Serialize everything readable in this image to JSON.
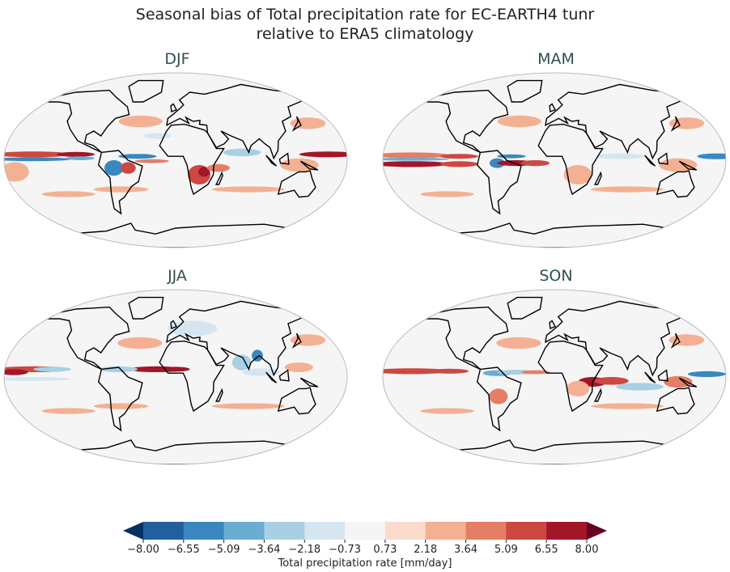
{
  "title_line1": "Seasonal bias of Total precipitation rate for EC-EARTH4 tunr",
  "title_line2": "relative to ERA5 climatology",
  "chart_data": {
    "type": "map",
    "colorbar": {
      "label": "Total precipitation rate [mm/day]",
      "ticks": [
        "−8.00",
        "−6.55",
        "−5.09",
        "−3.64",
        "−2.18",
        "−0.73",
        "0.73",
        "2.18",
        "3.64",
        "5.09",
        "6.55",
        "8.00"
      ],
      "range": [
        -8,
        8
      ],
      "colors": [
        "#215f9e",
        "#3a87bf",
        "#6aadd3",
        "#a8d0e4",
        "#d6e6f0",
        "#f5f5f5",
        "#fbdccc",
        "#f4b092",
        "#e47e65",
        "#cc4840",
        "#a31628"
      ],
      "under_color": "#053061",
      "over_color": "#67001f"
    },
    "panels": [
      {
        "season": "DJF",
        "anomalies": [
          [
            -150,
            6,
            40,
            3,
            9
          ],
          [
            -105,
            6,
            20,
            2.5,
            10
          ],
          [
            160,
            6,
            30,
            3,
            10
          ],
          [
            -150,
            1,
            40,
            2,
            1
          ],
          [
            -100,
            2,
            15,
            2,
            2
          ],
          [
            -65,
            -8,
            10,
            8,
            1
          ],
          [
            -50,
            -8,
            8,
            6,
            9
          ],
          [
            -40,
            4,
            20,
            2.5,
            1
          ],
          [
            -25,
            -1,
            18,
            2,
            8
          ],
          [
            25,
            -15,
            12,
            10,
            9
          ],
          [
            30,
            -12,
            6,
            5,
            10
          ],
          [
            45,
            -8,
            12,
            4,
            8
          ],
          [
            130,
            -5,
            20,
            7,
            7
          ],
          [
            -170,
            -12,
            15,
            10,
            7
          ],
          [
            -40,
            40,
            25,
            6,
            7
          ],
          [
            150,
            38,
            20,
            6,
            7
          ],
          [
            -60,
            -30,
            30,
            3,
            7
          ],
          [
            80,
            -30,
            40,
            3,
            7
          ],
          [
            -120,
            -35,
            30,
            3,
            7
          ],
          [
            70,
            8,
            20,
            4,
            3
          ],
          [
            -20,
            25,
            15,
            3,
            4
          ]
        ]
      },
      {
        "season": "MAM",
        "anomalies": [
          [
            -150,
            5,
            40,
            3,
            8
          ],
          [
            -100,
            4,
            20,
            2.5,
            9
          ],
          [
            -150,
            -4,
            40,
            3,
            10
          ],
          [
            -100,
            -4,
            20,
            3,
            9
          ],
          [
            -150,
            1,
            40,
            1.5,
            2
          ],
          [
            -60,
            -3,
            8,
            5,
            1
          ],
          [
            -40,
            -3,
            20,
            3,
            10
          ],
          [
            -20,
            -3,
            15,
            3,
            9
          ],
          [
            -45,
            4,
            15,
            2,
            1
          ],
          [
            170,
            4,
            20,
            3,
            1
          ],
          [
            130,
            -5,
            20,
            7,
            7
          ],
          [
            -40,
            40,
            25,
            6,
            7
          ],
          [
            150,
            38,
            20,
            6,
            7
          ],
          [
            80,
            -30,
            40,
            3,
            7
          ],
          [
            -120,
            -35,
            30,
            3,
            7
          ],
          [
            70,
            4,
            25,
            3,
            4
          ],
          [
            25,
            -15,
            15,
            10,
            7
          ]
        ]
      },
      {
        "season": "JJA",
        "anomalies": [
          [
            -150,
            8,
            40,
            3,
            9
          ],
          [
            -170,
            5,
            15,
            3,
            10
          ],
          [
            -130,
            8,
            20,
            2.5,
            3
          ],
          [
            -20,
            8,
            30,
            3,
            10
          ],
          [
            0,
            8,
            15,
            2.5,
            10
          ],
          [
            -60,
            8,
            20,
            3,
            3
          ],
          [
            88,
            22,
            6,
            6,
            1
          ],
          [
            70,
            15,
            10,
            8,
            3
          ],
          [
            90,
            5,
            20,
            4,
            4
          ],
          [
            130,
            10,
            15,
            5,
            7
          ],
          [
            -150,
            -2,
            40,
            2,
            4
          ],
          [
            -40,
            35,
            25,
            6,
            7
          ],
          [
            150,
            38,
            20,
            6,
            7
          ],
          [
            80,
            -30,
            40,
            3,
            7
          ],
          [
            -120,
            -35,
            30,
            3,
            7
          ],
          [
            -60,
            -30,
            30,
            3,
            7
          ],
          [
            20,
            50,
            30,
            8,
            4
          ]
        ]
      },
      {
        "season": "SON",
        "anomalies": [
          [
            -150,
            6,
            40,
            3,
            9
          ],
          [
            -110,
            6,
            20,
            2.5,
            9
          ],
          [
            -60,
            4,
            15,
            3,
            2
          ],
          [
            -40,
            5,
            20,
            2.5,
            3
          ],
          [
            -20,
            5,
            15,
            2,
            8
          ],
          [
            40,
            -5,
            15,
            5,
            10
          ],
          [
            60,
            -4,
            18,
            4,
            9
          ],
          [
            90,
            -10,
            25,
            4,
            3
          ],
          [
            130,
            -5,
            15,
            6,
            8
          ],
          [
            160,
            3,
            20,
            3,
            1
          ],
          [
            -40,
            35,
            25,
            6,
            7
          ],
          [
            150,
            38,
            20,
            6,
            7
          ],
          [
            80,
            -30,
            40,
            3,
            7
          ],
          [
            -120,
            -35,
            30,
            3,
            7
          ],
          [
            -60,
            -20,
            10,
            8,
            8
          ],
          [
            25,
            -12,
            12,
            8,
            7
          ]
        ]
      }
    ]
  }
}
